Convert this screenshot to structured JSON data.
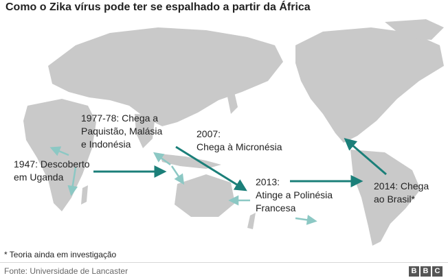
{
  "title": "Como o Zika vírus pode ter se espalhado a partir da África",
  "colors": {
    "land": "#c9c9c9",
    "arrow": "#1b7f79",
    "arrow_light": "#8cc8c4"
  },
  "labels": {
    "uganda": "1947: Descoberto\nem Uganda",
    "asia": "1977-78: Chega a\nPaquistão, Malásia\ne Indonésia",
    "micronesia": "2007:\nChega à Micronésia",
    "polynesia": "2013:\nAtinge a Polinésia\nFrancesa",
    "brazil": "2014: Chega\nao Brasil*"
  },
  "footnote": "* Teoria ainda em investigação",
  "source": "Fonte: Universidade de Lancaster",
  "logo": [
    "B",
    "B",
    "C"
  ]
}
